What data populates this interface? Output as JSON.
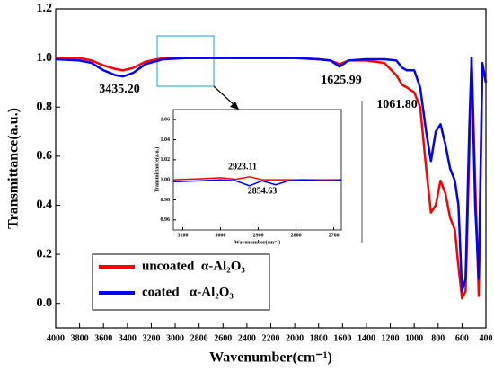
{
  "chart_data": [
    {
      "type": "line",
      "xlabel": "Wavenumber(cm⁻¹)",
      "ylabel": "Transmittance(a.u.)",
      "xlim": [
        4000,
        400
      ],
      "ylim": [
        -0.1,
        1.2
      ],
      "xticks": [
        4000,
        3800,
        3600,
        3400,
        3200,
        3000,
        2800,
        2600,
        2400,
        2200,
        2000,
        1800,
        1600,
        1400,
        1200,
        1000,
        800,
        600,
        400
      ],
      "yticks": [
        {
          "value": 0,
          "label": "0.0"
        },
        0.2,
        0.4,
        0.6,
        0.8,
        {
          "value": 1,
          "label": "1.0"
        },
        1.2
      ],
      "grid": false,
      "legend": "lower left",
      "x": [
        4000,
        3800,
        3700,
        3600,
        3500,
        3435,
        3350,
        3250,
        3100,
        2900,
        2700,
        2400,
        2000,
        1800,
        1700,
        1625,
        1550,
        1400,
        1250,
        1150,
        1100,
        1061,
        1000,
        950,
        900,
        860,
        820,
        780,
        740,
        700,
        660,
        630,
        600,
        570,
        540,
        520,
        490,
        460,
        430,
        400
      ],
      "series": [
        {
          "name": "uncoated  α-Al₂O₃",
          "color": "#ff0000",
          "values": [
            1.0,
            1.0,
            0.99,
            0.97,
            0.955,
            0.95,
            0.96,
            0.985,
            1.0,
            1.0,
            1.0,
            1.0,
            1.0,
            0.995,
            0.99,
            0.975,
            0.99,
            0.99,
            0.98,
            0.93,
            0.89,
            0.88,
            0.86,
            0.8,
            0.55,
            0.37,
            0.4,
            0.5,
            0.45,
            0.35,
            0.3,
            0.15,
            0.02,
            0.05,
            0.6,
            1.0,
            0.5,
            0.03,
            0.97,
            0.9
          ]
        },
        {
          "name": "coated   α-Al₂O₃",
          "color": "#0000ff",
          "values": [
            0.995,
            0.99,
            0.98,
            0.95,
            0.93,
            0.925,
            0.94,
            0.975,
            0.995,
            1.0,
            1.0,
            1.0,
            1.0,
            0.995,
            0.99,
            0.965,
            0.99,
            0.995,
            0.995,
            0.99,
            0.96,
            0.95,
            0.95,
            0.88,
            0.7,
            0.58,
            0.7,
            0.73,
            0.65,
            0.55,
            0.5,
            0.4,
            0.05,
            0.1,
            0.7,
            1.0,
            0.4,
            0.1,
            0.98,
            0.9
          ]
        }
      ],
      "annotations": [
        "3435.20",
        "1625.99",
        "1061.80"
      ]
    },
    {
      "type": "line",
      "xlabel": "Wavenumber(cm⁻¹)",
      "ylabel": "Transmittance(a.u.)",
      "xlim": [
        3125,
        2680
      ],
      "ylim": [
        0.95,
        1.07
      ],
      "xticks": [
        3100,
        3000,
        2900,
        2800,
        2700
      ],
      "yticks": [
        0.96,
        0.98,
        {
          "value": 1,
          "label": "1.00"
        },
        1.02,
        1.04,
        1.06
      ],
      "grid": false,
      "x": [
        3125,
        3050,
        3000,
        2960,
        2923,
        2890,
        2854,
        2820,
        2780,
        2740,
        2700,
        2680
      ],
      "series": [
        {
          "color": "#ff0000",
          "values": [
            1.0,
            1.001,
            1.002,
            1.0005,
            1.003,
            1.0,
            1.0,
            1.0,
            1.0,
            1.0,
            1.0,
            1.0
          ]
        },
        {
          "color": "#0000ff",
          "values": [
            0.998,
            0.999,
            1.0,
            0.999,
            0.994,
            0.999,
            0.995,
            0.999,
            1.0,
            0.999,
            0.999,
            1.0
          ]
        }
      ],
      "annotations": [
        "2923.11",
        "2854.63"
      ]
    }
  ]
}
